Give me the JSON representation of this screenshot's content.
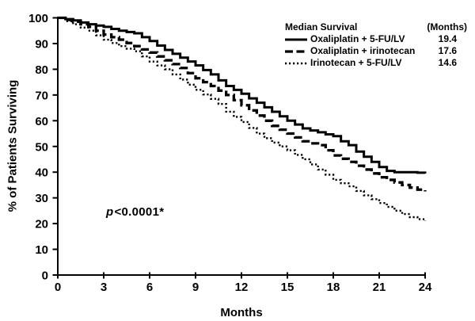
{
  "chart_data": {
    "type": "line",
    "subtype": "kaplan-meier-step",
    "title": "",
    "xlabel": "Months",
    "ylabel": "% of Patients Surviving",
    "xlim": [
      0,
      24
    ],
    "ylim": [
      0,
      100
    ],
    "xticks": [
      0,
      3,
      6,
      9,
      12,
      15,
      18,
      21,
      24
    ],
    "yticks": [
      0,
      10,
      20,
      30,
      40,
      50,
      60,
      70,
      80,
      90,
      100
    ],
    "grid": false,
    "legend_position": "top-right",
    "line_color": "#000000",
    "background_color": "#ffffff",
    "x_start": 0,
    "x_step": 0.5,
    "legend": {
      "header_left": "Median Survival",
      "header_right": "(Months)"
    },
    "annotation": {
      "prefix": "p",
      "rest": "<0.0001*"
    },
    "series": [
      {
        "name": "Oxaliplatin + 5-FU/LV",
        "median_months": "19.4",
        "line_style": "solid",
        "values": [
          100,
          99.5,
          99,
          98.2,
          97.5,
          97,
          96.5,
          95.7,
          95,
          94.5,
          94,
          92.5,
          91,
          89.2,
          87.5,
          86,
          84.5,
          83,
          81.5,
          79.7,
          78,
          75.7,
          73.5,
          72,
          70.5,
          68.7,
          67,
          65.2,
          63.5,
          61.7,
          60,
          58.5,
          57,
          56.2,
          55.5,
          54.7,
          54,
          52,
          50.5,
          48,
          46,
          44,
          42,
          40.5,
          40,
          40,
          40,
          39.8,
          39.5
        ]
      },
      {
        "name": "Oxaliplatin + irinotecan",
        "median_months": "17.6",
        "line_style": "dashed",
        "values": [
          100,
          99.2,
          98.5,
          97.5,
          96.5,
          95,
          93.5,
          92.5,
          91.5,
          90.2,
          89,
          87.7,
          86.5,
          85,
          83.5,
          82,
          80.5,
          78.5,
          76.5,
          75,
          73.5,
          71.7,
          70,
          68,
          66,
          64,
          62,
          60,
          58,
          56.5,
          55,
          53.5,
          52,
          51.2,
          50.5,
          48.5,
          46.5,
          45.2,
          44,
          42.5,
          41,
          39.5,
          38,
          37,
          36,
          35,
          34,
          33.2,
          32.5
        ]
      },
      {
        "name": "Irinotecan + 5-FU/LV",
        "median_months": "14.6",
        "line_style": "dotted",
        "values": [
          100,
          98.7,
          97.5,
          96.2,
          95,
          93.2,
          91.5,
          90.2,
          89,
          88,
          87,
          85,
          83,
          81.5,
          80,
          78,
          76,
          74,
          72,
          70.2,
          68.5,
          66.5,
          63.5,
          61.5,
          59.5,
          57.2,
          55,
          53.2,
          51.5,
          50,
          48.5,
          46.7,
          45,
          43,
          41,
          39,
          37,
          35.7,
          34.5,
          32.7,
          31,
          29.5,
          28,
          26.5,
          25,
          23.7,
          22.5,
          21.7,
          21
        ]
      }
    ]
  }
}
